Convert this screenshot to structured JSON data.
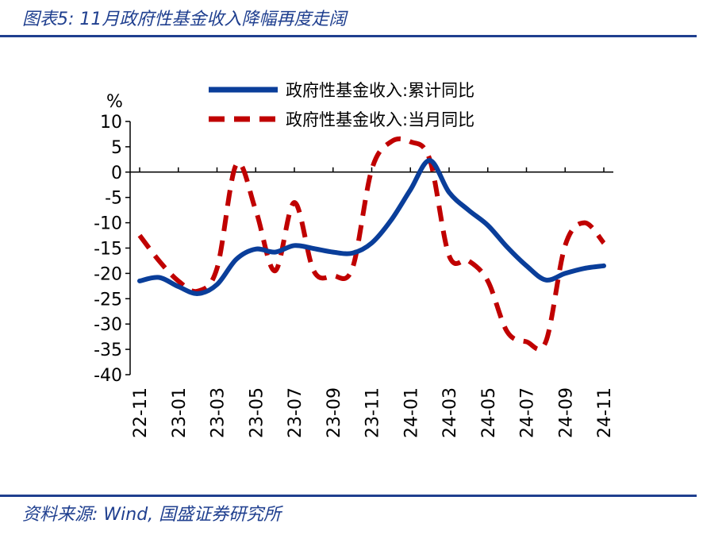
{
  "figure": {
    "title": "图表5: 11月政府性基金收入降幅再度走阔",
    "source": "资料来源: Wind, 国盛证券研究所"
  },
  "chart_data": {
    "type": "line",
    "unit_label": "%",
    "ylim": [
      -40,
      10
    ],
    "yticks": [
      10,
      5,
      0,
      -5,
      -10,
      -15,
      -20,
      -25,
      -30,
      -35,
      -40
    ],
    "x_tick_labels": [
      "22-11",
      "23-01",
      "23-03",
      "23-05",
      "23-07",
      "23-09",
      "23-11",
      "24-01",
      "24-03",
      "24-05",
      "24-07",
      "24-09",
      "24-11"
    ],
    "x": [
      "22-11",
      "22-12",
      "23-01",
      "23-02",
      "23-03",
      "23-04",
      "23-05",
      "23-06",
      "23-07",
      "23-08",
      "23-09",
      "23-10",
      "23-11",
      "23-12",
      "24-01",
      "24-02",
      "24-03",
      "24-04",
      "24-05",
      "24-06",
      "24-07",
      "24-08",
      "24-09",
      "24-10",
      "24-11"
    ],
    "legend_position": "top",
    "grid": false,
    "series": [
      {
        "name": "政府性基金收入:累计同比",
        "style": "solid",
        "color": "#0a3e9a",
        "values": [
          -21.5,
          -20.8,
          -22.6,
          -24.0,
          -22.2,
          -17.2,
          -15.2,
          -15.8,
          -14.5,
          -15.1,
          -15.8,
          -16.0,
          -14.0,
          -9.5,
          -3.5,
          2.3,
          -4.0,
          -7.5,
          -10.5,
          -14.8,
          -18.5,
          -21.3,
          -20.0,
          -19.0,
          -18.5
        ]
      },
      {
        "name": "政府性基金收入:当月同比",
        "style": "dashed",
        "color": "#c00000",
        "values": [
          -12.5,
          -17.5,
          -21.5,
          -23.5,
          -19.0,
          1.5,
          -7.5,
          -19.5,
          -6.0,
          -19.5,
          -20.5,
          -19.0,
          0.5,
          6.0,
          6.0,
          2.5,
          -16.5,
          -17.5,
          -21.5,
          -31.5,
          -33.5,
          -33.5,
          -14.5,
          -10.0,
          -14.0
        ]
      }
    ]
  }
}
